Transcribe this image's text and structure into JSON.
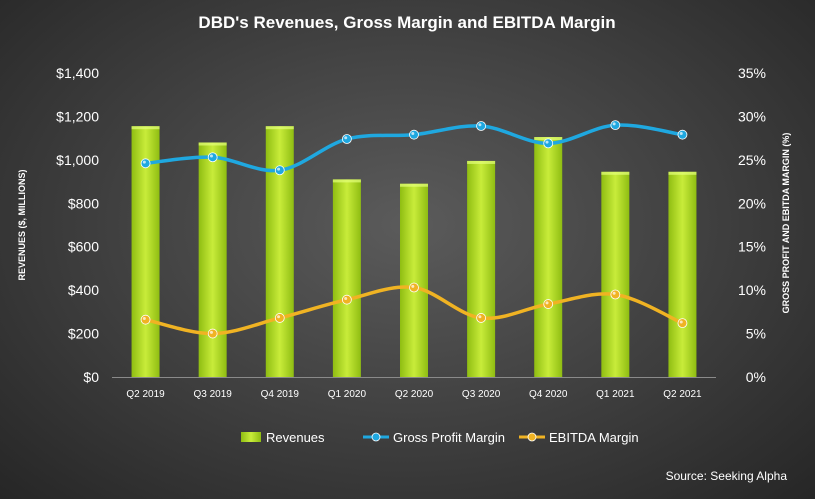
{
  "chart_data": {
    "type": "bar",
    "title": "DBD's Revenues, Gross Margin and EBITDA Margin",
    "categories": [
      "Q2 2019",
      "Q3 2019",
      "Q4 2019",
      "Q1 2020",
      "Q2 2020",
      "Q3 2020",
      "Q4 2020",
      "Q1 2021",
      "Q2 2021"
    ],
    "ylabel": "REVENUES ($, MILLIONS)",
    "y2label": "GROSS PROFIT AND EBITDA MARGIN (%)",
    "ylim": [
      0,
      1400
    ],
    "y2lim": [
      0,
      35
    ],
    "yticks": [
      "$0",
      "$200",
      "$400",
      "$600",
      "$800",
      "$1,000",
      "$1,200",
      "$1,400"
    ],
    "y2ticks": [
      "0%",
      "5%",
      "10%",
      "15%",
      "20%",
      "25%",
      "30%",
      "35%"
    ],
    "series": [
      {
        "name": "Revenues",
        "type": "bar",
        "axis": "left",
        "color": "#a6d21a",
        "values": [
          1155,
          1080,
          1155,
          910,
          890,
          995,
          1105,
          945,
          945
        ]
      },
      {
        "name": "Gross Profit Margin",
        "type": "line",
        "axis": "right",
        "color": "#1fa8e0",
        "values": [
          24.6,
          25.3,
          23.8,
          27.4,
          27.9,
          28.9,
          26.9,
          29.0,
          27.9
        ]
      },
      {
        "name": "EBITDA Margin",
        "type": "line",
        "axis": "right",
        "color": "#f0b323",
        "values": [
          6.6,
          5.0,
          6.8,
          8.9,
          10.3,
          6.8,
          8.4,
          9.5,
          6.2
        ]
      }
    ],
    "grid": false,
    "legend": "bottom"
  },
  "source": "Source: Seeking Alpha"
}
